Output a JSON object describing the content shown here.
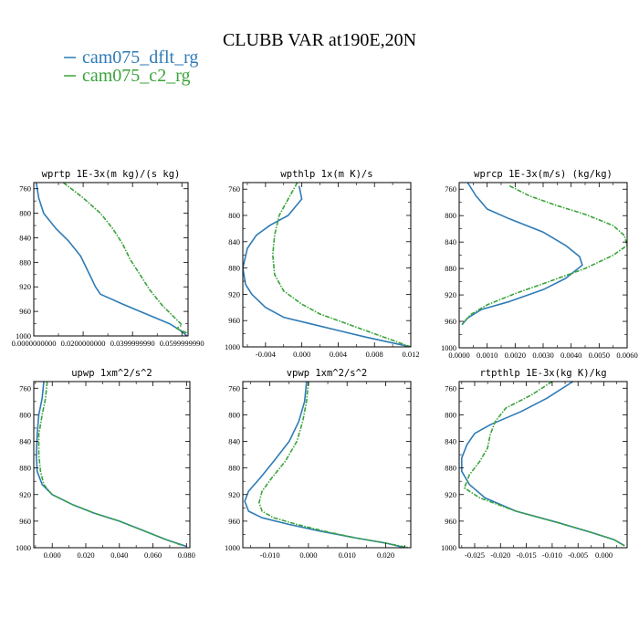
{
  "figure": {
    "title": "CLUBB VAR at190E,20N",
    "legend": [
      {
        "label": "cam075_dflt_rg",
        "color": "#2e7bb6"
      },
      {
        "label": "cam075_c2_rg",
        "color": "#3aa33a"
      }
    ]
  },
  "chart_data": [
    {
      "type": "line",
      "title": "wprtp  1E-3x(m kg)/(s kg)",
      "xlim": [
        0,
        0.0625
      ],
      "ylim": [
        750,
        1000
      ],
      "y_inverted": true,
      "xticks": [
        0,
        0.02,
        0.04,
        0.06
      ],
      "xtick_labels": [
        "0.0000000000",
        "0.0200000000",
        "0.0399999990",
        "0.0599999990"
      ],
      "yticks": [
        760,
        800,
        840,
        880,
        920,
        960,
        1000
      ],
      "ytick_labels": [
        "760",
        "800",
        "840",
        "880",
        "920",
        "960",
        "1000"
      ],
      "series": [
        {
          "name": "cam075_dflt_rg",
          "color": "#2e7bb6",
          "dashed": false,
          "points": [
            [
              0.001,
              750
            ],
            [
              0.002,
              775
            ],
            [
              0.004,
              800
            ],
            [
              0.009,
              825
            ],
            [
              0.014,
              845
            ],
            [
              0.019,
              870
            ],
            [
              0.022,
              895
            ],
            [
              0.025,
              920
            ],
            [
              0.027,
              932
            ],
            [
              0.036,
              948
            ],
            [
              0.046,
              965
            ],
            [
              0.055,
              980
            ],
            [
              0.059,
              990
            ],
            [
              0.061,
              996
            ],
            [
              0.062,
              1000
            ]
          ]
        },
        {
          "name": "cam075_c2_rg",
          "color": "#3aa33a",
          "dashed": true,
          "points": [
            [
              0.012,
              750
            ],
            [
              0.02,
              775
            ],
            [
              0.027,
              800
            ],
            [
              0.032,
              825
            ],
            [
              0.036,
              850
            ],
            [
              0.039,
              875
            ],
            [
              0.043,
              900
            ],
            [
              0.047,
              925
            ],
            [
              0.052,
              950
            ],
            [
              0.057,
              970
            ],
            [
              0.06,
              982
            ],
            [
              0.058,
              988
            ],
            [
              0.059,
              990
            ],
            [
              0.062,
              995
            ]
          ]
        }
      ]
    },
    {
      "type": "line",
      "title": "wpthlp  1x(m K)/s",
      "xlim": [
        -0.0065,
        0.012
      ],
      "ylim": [
        750,
        1000
      ],
      "y_inverted": true,
      "xticks": [
        -0.004,
        0,
        0.004,
        0.008,
        0.012
      ],
      "xtick_labels": [
        "-0.004",
        "0.000",
        "0.004",
        "0.008",
        "0.012"
      ],
      "yticks": [
        760,
        800,
        840,
        880,
        920,
        960,
        1000
      ],
      "ytick_labels": [
        "760",
        "800",
        "840",
        "880",
        "920",
        "960",
        "1000"
      ],
      "series": [
        {
          "name": "cam075_dflt_rg",
          "color": "#2e7bb6",
          "dashed": false,
          "points": [
            [
              -0.0003,
              755
            ],
            [
              0.0,
              775
            ],
            [
              -0.0015,
              800
            ],
            [
              -0.0035,
              815
            ],
            [
              -0.005,
              830
            ],
            [
              -0.006,
              850
            ],
            [
              -0.0065,
              880
            ],
            [
              -0.0062,
              905
            ],
            [
              -0.0055,
              920
            ],
            [
              -0.004,
              940
            ],
            [
              -0.002,
              955
            ],
            [
              0.001,
              965
            ],
            [
              0.004,
              975
            ],
            [
              0.007,
              985
            ],
            [
              0.01,
              994
            ],
            [
              0.012,
              1000
            ]
          ]
        },
        {
          "name": "cam075_c2_rg",
          "color": "#3aa33a",
          "dashed": true,
          "points": [
            [
              -0.0005,
              750
            ],
            [
              -0.0015,
              775
            ],
            [
              -0.0025,
              800
            ],
            [
              -0.003,
              830
            ],
            [
              -0.0032,
              860
            ],
            [
              -0.003,
              890
            ],
            [
              -0.002,
              915
            ],
            [
              0.0,
              935
            ],
            [
              0.002,
              950
            ],
            [
              0.004,
              960
            ],
            [
              0.006,
              970
            ],
            [
              0.008,
              980
            ],
            [
              0.01,
              990
            ],
            [
              0.012,
              1000
            ]
          ]
        }
      ]
    },
    {
      "type": "line",
      "title": "wprcp  1E-3x(m/s) (kg/kg)",
      "xlim": [
        0,
        0.006
      ],
      "ylim": [
        750,
        1000
      ],
      "y_inverted": true,
      "xticks": [
        0,
        0.001,
        0.002,
        0.003,
        0.004,
        0.005,
        0.006
      ],
      "xtick_labels": [
        "0.0000",
        "0.0010",
        "0.0020",
        "0.0030",
        "0.0040",
        "0.0050",
        "0.0060"
      ],
      "yticks": [
        760,
        800,
        840,
        880,
        920,
        960,
        1000
      ],
      "ytick_labels": [
        "760",
        "800",
        "840",
        "880",
        "920",
        "960",
        "1000"
      ],
      "series": [
        {
          "name": "cam075_dflt_rg",
          "color": "#2e7bb6",
          "dashed": false,
          "points": [
            [
              0.0003,
              750
            ],
            [
              0.0006,
              770
            ],
            [
              0.001,
              790
            ],
            [
              0.0018,
              805
            ],
            [
              0.003,
              825
            ],
            [
              0.0038,
              845
            ],
            [
              0.0043,
              862
            ],
            [
              0.0044,
              875
            ],
            [
              0.0038,
              895
            ],
            [
              0.003,
              912
            ],
            [
              0.0018,
              930
            ],
            [
              0.0008,
              942
            ],
            [
              0.0003,
              955
            ],
            [
              0.0001,
              965
            ]
          ]
        },
        {
          "name": "cam075_c2_rg",
          "color": "#3aa33a",
          "dashed": true,
          "points": [
            [
              0.0018,
              755
            ],
            [
              0.0025,
              770
            ],
            [
              0.0035,
              785
            ],
            [
              0.0045,
              798
            ],
            [
              0.0055,
              815
            ],
            [
              0.0059,
              830
            ],
            [
              0.006,
              845
            ],
            [
              0.0055,
              860
            ],
            [
              0.0045,
              880
            ],
            [
              0.0032,
              900
            ],
            [
              0.002,
              918
            ],
            [
              0.001,
              935
            ],
            [
              0.0004,
              950
            ],
            [
              0.0001,
              965
            ]
          ]
        }
      ]
    },
    {
      "type": "line",
      "title": "upwp  1xm^2/s^2",
      "xlim": [
        -0.011,
        0.082
      ],
      "ylim": [
        750,
        1000
      ],
      "y_inverted": true,
      "xticks": [
        0,
        0.02,
        0.04,
        0.06,
        0.08
      ],
      "xtick_labels": [
        "0.000",
        "0.020",
        "0.040",
        "0.060",
        "0.080"
      ],
      "yticks": [
        760,
        800,
        840,
        880,
        920,
        960,
        1000
      ],
      "ytick_labels": [
        "760",
        "800",
        "840",
        "880",
        "920",
        "960",
        "1000"
      ],
      "series": [
        {
          "name": "cam075_dflt_rg",
          "color": "#2e7bb6",
          "dashed": false,
          "points": [
            [
              -0.005,
              750
            ],
            [
              -0.006,
              775
            ],
            [
              -0.008,
              800
            ],
            [
              -0.009,
              830
            ],
            [
              -0.0095,
              860
            ],
            [
              -0.009,
              885
            ],
            [
              -0.006,
              905
            ],
            [
              0.0,
              920
            ],
            [
              0.012,
              935
            ],
            [
              0.025,
              948
            ],
            [
              0.04,
              960
            ],
            [
              0.055,
              975
            ],
            [
              0.068,
              988
            ],
            [
              0.08,
              998
            ]
          ]
        },
        {
          "name": "cam075_c2_rg",
          "color": "#3aa33a",
          "dashed": true,
          "points": [
            [
              -0.003,
              750
            ],
            [
              -0.004,
              775
            ],
            [
              -0.006,
              800
            ],
            [
              -0.008,
              830
            ],
            [
              -0.008,
              860
            ],
            [
              -0.007,
              885
            ],
            [
              -0.005,
              905
            ],
            [
              0.0,
              920
            ],
            [
              0.012,
              935
            ],
            [
              0.025,
              948
            ],
            [
              0.04,
              960
            ],
            [
              0.055,
              975
            ],
            [
              0.068,
              988
            ],
            [
              0.078,
              997
            ]
          ]
        }
      ]
    },
    {
      "type": "line",
      "title": "vpwp  1xm^2/s^2",
      "xlim": [
        -0.017,
        0.0265
      ],
      "ylim": [
        750,
        1000
      ],
      "y_inverted": true,
      "xticks": [
        -0.01,
        0,
        0.01,
        0.02
      ],
      "xtick_labels": [
        "-0.010",
        "0.000",
        "0.010",
        "0.020"
      ],
      "yticks": [
        760,
        800,
        840,
        880,
        920,
        960,
        1000
      ],
      "ytick_labels": [
        "760",
        "800",
        "840",
        "880",
        "920",
        "960",
        "1000"
      ],
      "series": [
        {
          "name": "cam075_dflt_rg",
          "color": "#2e7bb6",
          "dashed": false,
          "points": [
            [
              -0.0005,
              750
            ],
            [
              -0.001,
              780
            ],
            [
              -0.0025,
              810
            ],
            [
              -0.005,
              840
            ],
            [
              -0.009,
              870
            ],
            [
              -0.0125,
              895
            ],
            [
              -0.0155,
              915
            ],
            [
              -0.0165,
              930
            ],
            [
              -0.0155,
              945
            ],
            [
              -0.012,
              955
            ],
            [
              -0.005,
              965
            ],
            [
              0.003,
              975
            ],
            [
              0.012,
              985
            ],
            [
              0.02,
              993
            ],
            [
              0.025,
              1000
            ]
          ]
        },
        {
          "name": "cam075_c2_rg",
          "color": "#3aa33a",
          "dashed": true,
          "points": [
            [
              0.0,
              750
            ],
            [
              -0.0005,
              780
            ],
            [
              -0.0015,
              810
            ],
            [
              -0.003,
              840
            ],
            [
              -0.006,
              870
            ],
            [
              -0.0095,
              895
            ],
            [
              -0.012,
              915
            ],
            [
              -0.0128,
              932
            ],
            [
              -0.012,
              945
            ],
            [
              -0.009,
              955
            ],
            [
              -0.003,
              965
            ],
            [
              0.004,
              975
            ],
            [
              0.012,
              985
            ],
            [
              0.02,
              993
            ],
            [
              0.026,
              1000
            ]
          ]
        }
      ]
    },
    {
      "type": "line",
      "title": "rtpthlp  1E-3x(kg K)/kg",
      "xlim": [
        -0.028,
        0.0045
      ],
      "ylim": [
        750,
        1000
      ],
      "y_inverted": true,
      "xticks": [
        -0.025,
        -0.02,
        -0.015,
        -0.01,
        -0.005,
        0
      ],
      "xtick_labels": [
        "-0.025",
        "-0.020",
        "-0.015",
        "-0.010",
        "-0.005",
        "0.000"
      ],
      "yticks": [
        760,
        800,
        840,
        880,
        920,
        960,
        1000
      ],
      "ytick_labels": [
        "760",
        "800",
        "840",
        "880",
        "920",
        "960",
        "1000"
      ],
      "series": [
        {
          "name": "cam075_dflt_rg",
          "color": "#2e7bb6",
          "dashed": false,
          "points": [
            [
              -0.006,
              750
            ],
            [
              -0.011,
              775
            ],
            [
              -0.016,
              795
            ],
            [
              -0.022,
              815
            ],
            [
              -0.025,
              828
            ],
            [
              -0.0265,
              845
            ],
            [
              -0.0275,
              865
            ],
            [
              -0.0275,
              885
            ],
            [
              -0.026,
              905
            ],
            [
              -0.023,
              925
            ],
            [
              -0.017,
              945
            ],
            [
              -0.009,
              962
            ],
            [
              -0.002,
              978
            ],
            [
              0.002,
              988
            ],
            [
              0.004,
              997
            ]
          ]
        },
        {
          "name": "cam075_c2_rg",
          "color": "#3aa33a",
          "dashed": true,
          "points": [
            [
              -0.01,
              750
            ],
            [
              -0.014,
              770
            ],
            [
              -0.019,
              790
            ],
            [
              -0.021,
              810
            ],
            [
              -0.022,
              830
            ],
            [
              -0.0225,
              850
            ],
            [
              -0.024,
              870
            ],
            [
              -0.026,
              890
            ],
            [
              -0.027,
              910
            ],
            [
              -0.024,
              925
            ],
            [
              -0.017,
              945
            ],
            [
              -0.009,
              962
            ],
            [
              -0.002,
              978
            ],
            [
              0.002,
              988
            ],
            [
              0.004,
              997
            ]
          ]
        }
      ]
    }
  ]
}
